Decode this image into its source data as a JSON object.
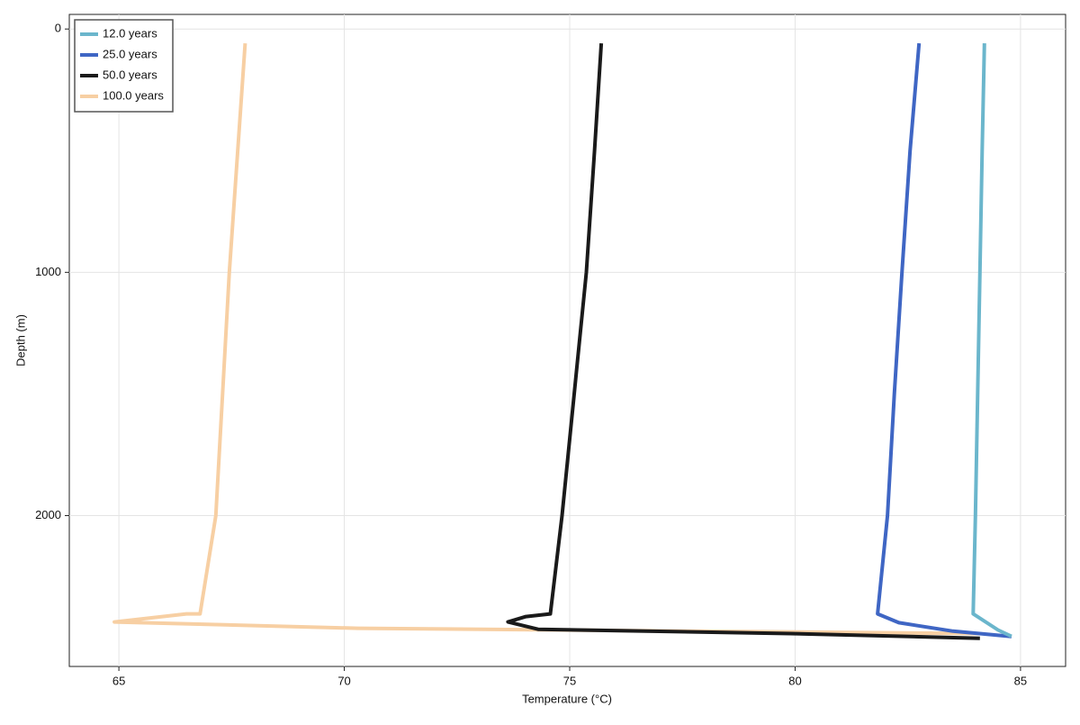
{
  "chart_data": {
    "type": "line",
    "xlabel": "Temperature (°C)",
    "ylabel": "Depth (m)",
    "xlim": [
      63.9,
      86.0
    ],
    "ylim": [
      2620,
      -60
    ],
    "y_reversed": true,
    "xticks": [
      65,
      70,
      75,
      80,
      85
    ],
    "yticks": [
      0,
      1000,
      2000
    ],
    "grid": true,
    "legend": "top-left",
    "series": [
      {
        "name": "12.0 years",
        "color": "#6bb6cc",
        "x": [
          84.2,
          84.15,
          84.1,
          84.05,
          84.0,
          83.95,
          84.5,
          84.8
        ],
        "y": [
          59,
          500,
          1000,
          1500,
          2000,
          2404,
          2470,
          2496
        ]
      },
      {
        "name": "25.0 years",
        "color": "#3f66c4",
        "x": [
          82.75,
          82.55,
          82.37,
          82.2,
          82.05,
          81.83,
          82.3,
          83.5,
          84.8
        ],
        "y": [
          59,
          500,
          1000,
          1500,
          2000,
          2404,
          2440,
          2475,
          2497
        ]
      },
      {
        "name": "50.0 years",
        "color": "#1a1a1a",
        "x": [
          75.7,
          75.55,
          75.37,
          75.1,
          74.83,
          74.57,
          74.03,
          73.63,
          74.3,
          79.9,
          84.1
        ],
        "y": [
          59,
          500,
          1000,
          1500,
          2000,
          2404,
          2415,
          2437,
          2467,
          2485,
          2504
        ]
      },
      {
        "name": "100.0 years",
        "color": "#f7cfa3",
        "x": [
          67.8,
          67.45,
          67.15,
          66.8,
          66.5,
          64.9,
          70.3,
          84.1
        ],
        "y": [
          59,
          1000,
          2000,
          2404,
          2404,
          2437,
          2463,
          2485
        ]
      }
    ]
  }
}
